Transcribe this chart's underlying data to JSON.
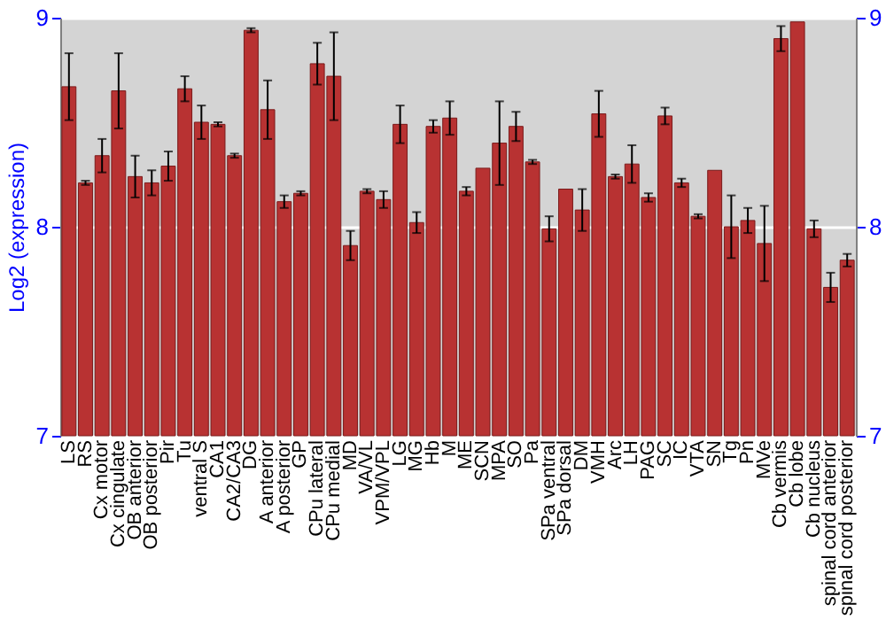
{
  "chart_data": {
    "type": "bar",
    "ylabel": "Log2 (expression)",
    "categories": [
      "LS",
      "RS",
      "Cx motor",
      "Cx cingulate",
      "OB anterior",
      "OB posterior",
      "Pir",
      "Tu",
      "ventral S",
      "CA1",
      "CA2/CA3",
      "DG",
      "A anterior",
      "A posterior",
      "GP",
      "CPu lateral",
      "CPu medial",
      "MD",
      "VA/VL",
      "VPM/VPL",
      "LG",
      "MG",
      "Hb",
      "M",
      "ME",
      "SCN",
      "MPA",
      "SO",
      "Pa",
      "SPa ventral",
      "SPa dorsal",
      "DM",
      "VMH",
      "Arc",
      "LH",
      "PAG",
      "SC",
      "IC",
      "VTA",
      "SN",
      "Tg",
      "Pn",
      "MVe",
      "Cb vermis",
      "Cb lobe",
      "Cb nucleus",
      "spinal cord anterior",
      "spinal cord posterior"
    ],
    "values": [
      8.67,
      8.21,
      8.34,
      8.65,
      8.24,
      8.21,
      8.29,
      8.66,
      8.5,
      8.49,
      8.34,
      8.94,
      8.56,
      8.12,
      8.16,
      8.78,
      8.72,
      7.91,
      8.17,
      8.13,
      8.49,
      8.02,
      8.48,
      8.52,
      8.17,
      8.28,
      8.4,
      8.48,
      8.31,
      7.99,
      8.18,
      8.08,
      8.54,
      8.24,
      8.3,
      8.14,
      8.53,
      8.21,
      8.05,
      8.27,
      8.0,
      8.03,
      7.92,
      8.9,
      8.98,
      7.99,
      7.71,
      7.84
    ],
    "errors": [
      0.16,
      0.01,
      0.08,
      0.18,
      0.1,
      0.06,
      0.07,
      0.06,
      0.08,
      0.01,
      0.01,
      0.01,
      0.14,
      0.03,
      0.01,
      0.1,
      0.21,
      0.07,
      0.01,
      0.04,
      0.09,
      0.05,
      0.03,
      0.08,
      0.02,
      null,
      0.2,
      0.07,
      0.01,
      0.06,
      null,
      0.1,
      0.11,
      0.01,
      0.09,
      0.02,
      0.04,
      0.02,
      0.01,
      null,
      0.15,
      0.06,
      0.18,
      0.06,
      null,
      0.04,
      0.07,
      0.03
    ],
    "color": "#b83232",
    "ylim": [
      7,
      9
    ],
    "yticks": [
      7,
      8,
      9
    ],
    "y2lim": [
      7,
      9
    ],
    "y2ticks": [
      7,
      8,
      9
    ],
    "grid": "y"
  }
}
